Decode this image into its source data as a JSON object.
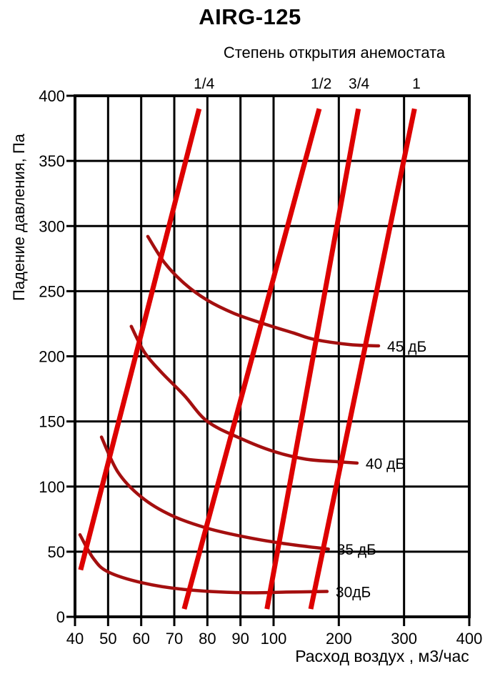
{
  "title": "AIRG-125",
  "chart_data": {
    "type": "line",
    "title": "AIRG-125",
    "top_axis_label": "Степень открытия анемостата",
    "xlabel": "Расход воздух , м3/час",
    "ylabel": "Падение давления, Па",
    "x_scale": "piecewise_linear (40-100 per 10, 100-400 per 100)",
    "x_ticks": [
      40,
      50,
      60,
      70,
      80,
      90,
      100,
      200,
      300,
      400
    ],
    "y_ticks": [
      0,
      50,
      100,
      150,
      200,
      250,
      300,
      350,
      400
    ],
    "x_range": [
      40,
      400
    ],
    "y_range": [
      0,
      400
    ],
    "grid": true,
    "legend_position": "inline-labels",
    "colors": {
      "opening_line": "#dd0000",
      "noise_curve": "#a40f0f",
      "axis": "#000000"
    },
    "series": {
      "opening_lines": [
        {
          "name": "1/4",
          "label_x": 79,
          "points": [
            [
              41.7,
              36
            ],
            [
              77.5,
              390
            ]
          ]
        },
        {
          "name": "1/2",
          "label_x": 173,
          "points": [
            [
              73,
              6
            ],
            [
              170,
              390
            ]
          ]
        },
        {
          "name": "3/4",
          "label_x": 231,
          "points": [
            [
              98,
              6
            ],
            [
              230,
              390
            ]
          ]
        },
        {
          "name": "1",
          "label_x": 319,
          "points": [
            [
              157,
              6
            ],
            [
              316,
              390
            ]
          ]
        }
      ],
      "noise_curves": [
        {
          "label": "45 дБ",
          "points": [
            [
              62,
              292
            ],
            [
              67,
              272
            ],
            [
              73,
              256
            ],
            [
              80,
              243
            ],
            [
              88,
              233
            ],
            [
              97,
              225
            ],
            [
              130,
              218
            ],
            [
              162,
              213
            ],
            [
              217,
              209
            ],
            [
              261,
              208
            ]
          ]
        },
        {
          "label": "40 дБ",
          "points": [
            [
              57,
              223
            ],
            [
              61,
              203
            ],
            [
              66,
              188
            ],
            [
              73,
              170
            ],
            [
              80,
              150
            ],
            [
              90,
              137
            ],
            [
              100,
              127
            ],
            [
              150,
              121
            ],
            [
              200,
              119
            ],
            [
              228,
              118
            ]
          ]
        },
        {
          "label": "35 дБ",
          "points": [
            [
              48,
              138
            ],
            [
              53,
              111
            ],
            [
              60,
              92
            ],
            [
              69,
              78
            ],
            [
              80,
              68
            ],
            [
              92,
              61
            ],
            [
              119,
              56
            ],
            [
              184,
              52
            ]
          ]
        },
        {
          "label": "30дБ",
          "points": [
            [
              41.5,
              63
            ],
            [
              45.5,
              45
            ],
            [
              50,
              34.5
            ],
            [
              60.5,
              26
            ],
            [
              73,
              21
            ],
            [
              91,
              18.5
            ],
            [
              119,
              19
            ],
            [
              182,
              19.5
            ]
          ]
        }
      ]
    }
  }
}
